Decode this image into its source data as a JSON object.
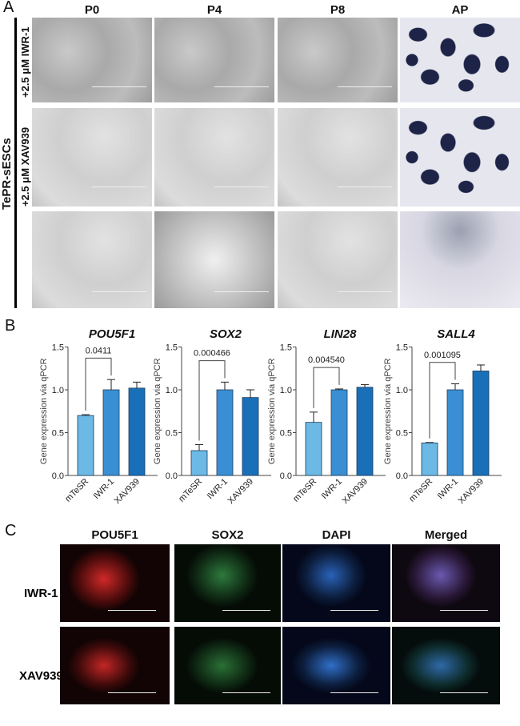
{
  "panel_a": {
    "letter": "A",
    "group_label": "TePR-sESCs",
    "columns": [
      "P0",
      "P4",
      "P8",
      "AP"
    ],
    "rows": [
      "+2.5 μM IWR-1",
      "+2.5 μM XAV939",
      ""
    ]
  },
  "panel_b": {
    "letter": "B"
  },
  "panel_c": {
    "letter": "C",
    "columns": [
      "POU5F1",
      "SOX2",
      "DAPI",
      "Merged"
    ],
    "rows": [
      "IWR-1",
      "XAV939"
    ]
  },
  "chart_data": [
    {
      "type": "bar",
      "title": "POU5F1",
      "ylabel": "Gene expression via qPCR",
      "ylim": [
        0,
        1.5
      ],
      "yticks": [
        "0.0",
        "0.5",
        "1.0",
        "1.5"
      ],
      "categories": [
        "mTeSR",
        "IWR-1",
        "XAV939"
      ],
      "values": [
        0.7,
        1.0,
        1.02
      ],
      "errors": [
        0.01,
        0.12,
        0.07
      ],
      "annotation": {
        "text": "0.0411",
        "between": [
          "mTeSR",
          "IWR-1"
        ]
      },
      "colors": [
        "#6cb9e6",
        "#3a8fd4",
        "#1a70b8"
      ]
    },
    {
      "type": "bar",
      "title": "SOX2",
      "ylabel": "Gene expression via qPCR",
      "ylim": [
        0,
        1.5
      ],
      "yticks": [
        "0.0",
        "0.5",
        "1.0",
        "1.5"
      ],
      "categories": [
        "mTeSR",
        "IWR-1",
        "XAV939"
      ],
      "values": [
        0.29,
        1.0,
        0.91
      ],
      "errors": [
        0.07,
        0.09,
        0.09
      ],
      "annotation": {
        "text": "0.000466",
        "between": [
          "mTeSR",
          "IWR-1"
        ]
      },
      "colors": [
        "#6cb9e6",
        "#3a8fd4",
        "#1a70b8"
      ]
    },
    {
      "type": "bar",
      "title": "LIN28",
      "ylabel": "Gene expression via qPCR",
      "ylim": [
        0,
        1.5
      ],
      "yticks": [
        "0.0",
        "0.5",
        "1.0",
        "1.5"
      ],
      "categories": [
        "mTeSR",
        "IWR-1",
        "XAV939"
      ],
      "values": [
        0.62,
        1.0,
        1.03
      ],
      "errors": [
        0.12,
        0.01,
        0.03
      ],
      "annotation": {
        "text": "0.004540",
        "between": [
          "mTeSR",
          "IWR-1"
        ]
      },
      "colors": [
        "#6cb9e6",
        "#3a8fd4",
        "#1a70b8"
      ]
    },
    {
      "type": "bar",
      "title": "SALL4",
      "ylabel": "Gene expression via qPCR",
      "ylim": [
        0,
        1.5
      ],
      "yticks": [
        "0.0",
        "0.5",
        "1.0",
        "1.5"
      ],
      "categories": [
        "mTeSR",
        "IWR-1",
        "XAV939"
      ],
      "values": [
        0.38,
        1.0,
        1.22
      ],
      "errors": [
        0.005,
        0.07,
        0.07
      ],
      "annotation": {
        "text": "0.001095",
        "between": [
          "mTeSR",
          "IWR-1"
        ]
      },
      "colors": [
        "#6cb9e6",
        "#3a8fd4",
        "#1a70b8"
      ]
    }
  ]
}
